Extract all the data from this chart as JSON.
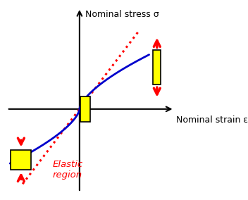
{
  "ylabel": "Nominal stress σ",
  "xlabel": "Nominal strain ε",
  "elastic_label": "Elastic\nregion",
  "bg_color": "#ffffff",
  "curve_color": "#0000cc",
  "elastic_color": "#ff0000",
  "figsize": [
    3.52,
    2.84
  ],
  "dpi": 100,
  "xlim": [
    -2.5,
    3.2
  ],
  "ylim": [
    -2.5,
    3.0
  ],
  "x_axis_left": -2.3,
  "x_axis_right": 3.0,
  "y_axis_bottom": -2.3,
  "y_axis_top": 2.8,
  "curve_x_start": -2.2,
  "curve_x_end": 2.2,
  "elastic_x_start": -1.8,
  "elastic_x_end": 1.9,
  "elastic_slope": 1.15
}
